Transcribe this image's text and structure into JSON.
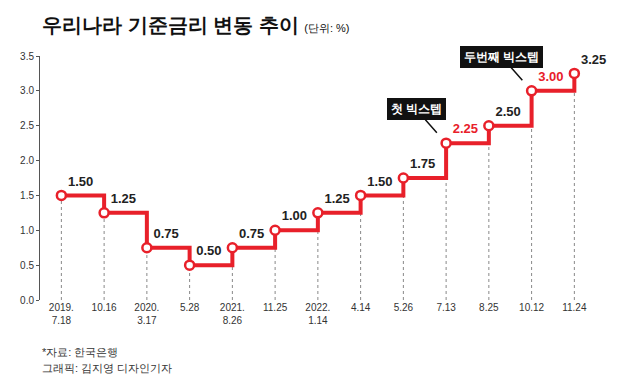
{
  "chart_data": {
    "type": "line",
    "title": "우리나라 기준금리 변동 추이",
    "unit": "(단위: %)",
    "categories": [
      "2019.\n7.18",
      "10.16",
      "2020.\n3.17",
      "5.28",
      "2021.\n8.26",
      "11.25",
      "2022.\n1.14",
      "4.14",
      "5.26",
      "7.13",
      "8.25",
      "10.12",
      "11.24"
    ],
    "values": [
      1.5,
      1.25,
      0.75,
      0.5,
      0.75,
      1.0,
      1.25,
      1.5,
      1.75,
      2.25,
      2.5,
      3.0,
      3.25
    ],
    "value_labels": [
      "1.50",
      "1.25",
      "0.75",
      "0.50",
      "0.75",
      "1.00",
      "1.25",
      "1.50",
      "1.75",
      "2.25",
      "2.50",
      "3.00",
      "3.25"
    ],
    "color": "#e8202a",
    "colors": [
      "#222222",
      "#222222",
      "#222222",
      "#222222",
      "#222222",
      "#222222",
      "#222222",
      "#222222",
      "#222222",
      "#e8202a",
      "#222222",
      "#e8202a",
      "#222222"
    ],
    "marker": "circle",
    "line_style": "step",
    "ylim": [
      0,
      3.5
    ],
    "yticks": [
      {
        "value": 0,
        "label": "0.0"
      },
      0.5,
      {
        "value": 1,
        "label": "1.0"
      },
      1.5,
      {
        "value": 2,
        "label": "2.0"
      },
      2.5,
      {
        "value": 3,
        "label": "3.0"
      },
      3.5
    ],
    "grid": false,
    "data_labels": true,
    "annotations": [
      {
        "text": "첫 빅스텝",
        "category": "7.13",
        "value": 2.25
      },
      {
        "text": "두번째 빅스텝",
        "category": "10.12",
        "value": 3.0
      }
    ],
    "notes": [
      "*자료: 한국은행",
      "그래픽: 김지영 디자인기자"
    ]
  }
}
